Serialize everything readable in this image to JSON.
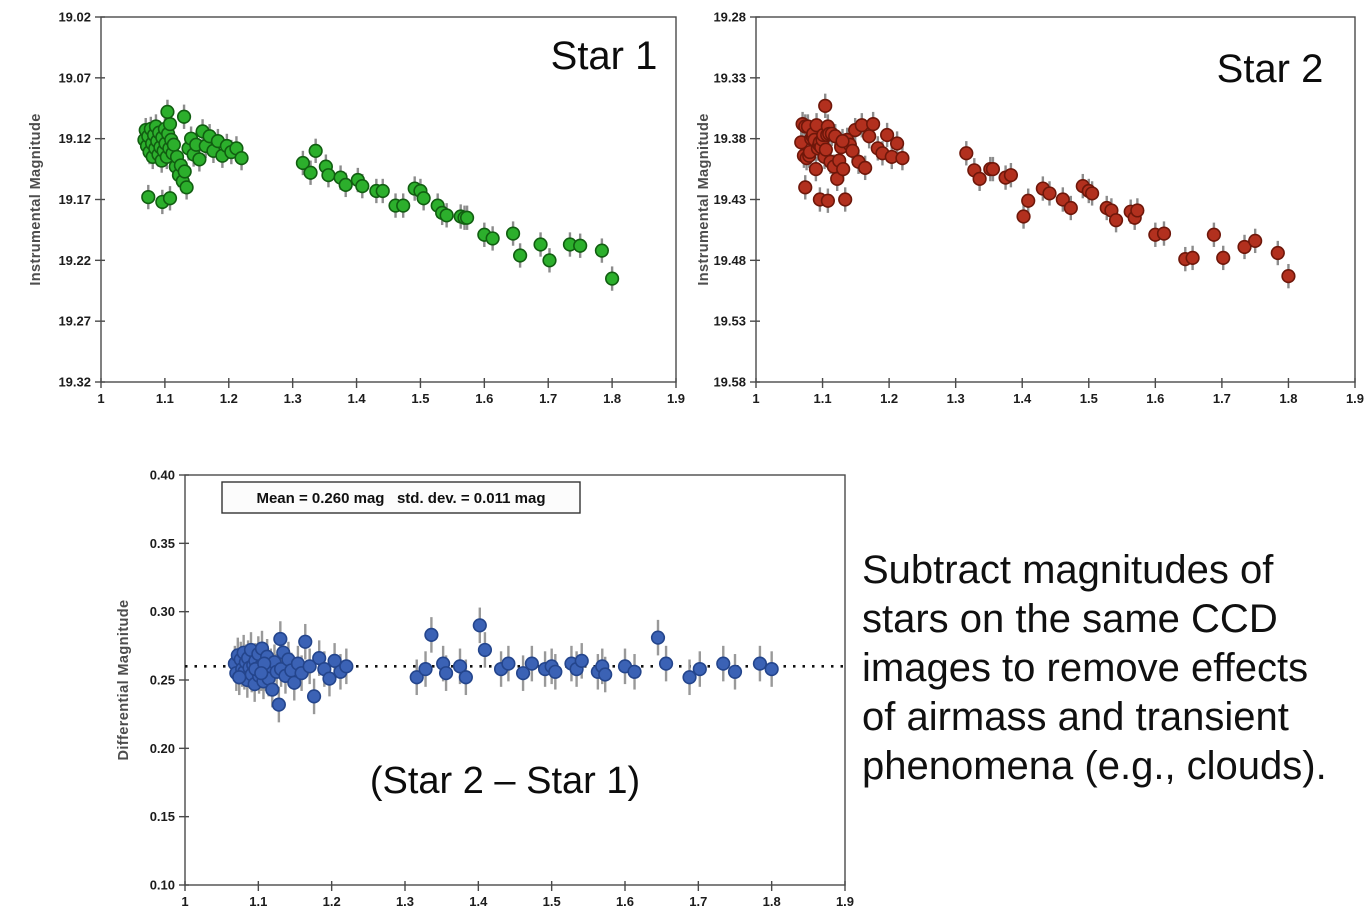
{
  "page": {
    "background": "#ffffff"
  },
  "side_text": {
    "lines": [
      "Subtract magnitudes of",
      "stars on the same CCD",
      "images to remove effects",
      "of airmass and transient",
      "phenomena (e.g., clouds)."
    ]
  },
  "chart_data": [
    {
      "type": "scatter",
      "title": "Star 1",
      "xlabel": "",
      "ylabel": "Instrumental Magnitude",
      "xlim": [
        1,
        1.9
      ],
      "x_ticks": [
        1,
        1.1,
        1.2,
        1.3,
        1.4,
        1.5,
        1.6,
        1.7,
        1.8,
        1.9
      ],
      "y_top": 19.02,
      "y_bottom": 19.32,
      "y_ticks": [
        19.02,
        19.07,
        19.12,
        19.17,
        19.22,
        19.27,
        19.32
      ],
      "grid": false,
      "marker_color": "#2CAF2C",
      "marker_edge_color": "#115E11",
      "errorbar_color": "#8C8C8C",
      "error_mag": 0.01,
      "points": [
        [
          1.068,
          19.121
        ],
        [
          1.07,
          19.113
        ],
        [
          1.072,
          19.126
        ],
        [
          1.074,
          19.118
        ],
        [
          1.076,
          19.131
        ],
        [
          1.078,
          19.112
        ],
        [
          1.08,
          19.124
        ],
        [
          1.081,
          19.135
        ],
        [
          1.083,
          19.117
        ],
        [
          1.085,
          19.128
        ],
        [
          1.086,
          19.11
        ],
        [
          1.088,
          19.122
        ],
        [
          1.09,
          19.133
        ],
        [
          1.091,
          19.115
        ],
        [
          1.093,
          19.127
        ],
        [
          1.095,
          19.138
        ],
        [
          1.096,
          19.119
        ],
        [
          1.098,
          19.13
        ],
        [
          1.1,
          19.112
        ],
        [
          1.101,
          19.124
        ],
        [
          1.103,
          19.135
        ],
        [
          1.105,
          19.116
        ],
        [
          1.107,
          19.128
        ],
        [
          1.108,
          19.108
        ],
        [
          1.11,
          19.121
        ],
        [
          1.112,
          19.132
        ],
        [
          1.114,
          19.125
        ],
        [
          1.117,
          19.143
        ],
        [
          1.119,
          19.135
        ],
        [
          1.122,
          19.15
        ],
        [
          1.125,
          19.142
        ],
        [
          1.128,
          19.155
        ],
        [
          1.131,
          19.147
        ],
        [
          1.134,
          19.16
        ],
        [
          1.137,
          19.128
        ],
        [
          1.141,
          19.12
        ],
        [
          1.145,
          19.133
        ],
        [
          1.149,
          19.125
        ],
        [
          1.154,
          19.137
        ],
        [
          1.159,
          19.114
        ],
        [
          1.164,
          19.126
        ],
        [
          1.17,
          19.118
        ],
        [
          1.176,
          19.13
        ],
        [
          1.183,
          19.122
        ],
        [
          1.19,
          19.134
        ],
        [
          1.197,
          19.126
        ],
        [
          1.204,
          19.131
        ],
        [
          1.212,
          19.128
        ],
        [
          1.22,
          19.136
        ],
        [
          1.074,
          19.168
        ],
        [
          1.096,
          19.172
        ],
        [
          1.108,
          19.169
        ],
        [
          1.104,
          19.098
        ],
        [
          1.13,
          19.102
        ],
        [
          1.316,
          19.14
        ],
        [
          1.328,
          19.148
        ],
        [
          1.336,
          19.13
        ],
        [
          1.352,
          19.143
        ],
        [
          1.356,
          19.15
        ],
        [
          1.375,
          19.152
        ],
        [
          1.383,
          19.158
        ],
        [
          1.402,
          19.154
        ],
        [
          1.409,
          19.159
        ],
        [
          1.431,
          19.163
        ],
        [
          1.441,
          19.163
        ],
        [
          1.461,
          19.175
        ],
        [
          1.473,
          19.175
        ],
        [
          1.491,
          19.161
        ],
        [
          1.5,
          19.163
        ],
        [
          1.505,
          19.169
        ],
        [
          1.527,
          19.175
        ],
        [
          1.534,
          19.181
        ],
        [
          1.541,
          19.183
        ],
        [
          1.563,
          19.184
        ],
        [
          1.569,
          19.185
        ],
        [
          1.573,
          19.185
        ],
        [
          1.6,
          19.199
        ],
        [
          1.613,
          19.202
        ],
        [
          1.645,
          19.198
        ],
        [
          1.656,
          19.216
        ],
        [
          1.688,
          19.207
        ],
        [
          1.702,
          19.22
        ],
        [
          1.734,
          19.207
        ],
        [
          1.75,
          19.208
        ],
        [
          1.784,
          19.212
        ],
        [
          1.8,
          19.235
        ]
      ]
    },
    {
      "type": "scatter",
      "title": "Star 2",
      "xlabel": "",
      "ylabel": "Instrumental Magnitude",
      "xlim": [
        1,
        1.9
      ],
      "x_ticks": [
        1,
        1.1,
        1.2,
        1.3,
        1.4,
        1.5,
        1.6,
        1.7,
        1.8,
        1.9
      ],
      "y_top": 19.28,
      "y_bottom": 19.58,
      "y_ticks": [
        19.28,
        19.33,
        19.38,
        19.43,
        19.48,
        19.53,
        19.58
      ],
      "grid": false,
      "marker_color": "#B2301E",
      "marker_edge_color": "#6E170A",
      "errorbar_color": "#8C8C8C",
      "error_mag": 0.01,
      "points": [
        [
          1.068,
          19.383
        ],
        [
          1.07,
          19.368
        ],
        [
          1.072,
          19.394
        ],
        [
          1.074,
          19.37
        ],
        [
          1.076,
          19.396
        ],
        [
          1.078,
          19.37
        ],
        [
          1.08,
          19.394
        ],
        [
          1.081,
          19.391
        ],
        [
          1.083,
          19.38
        ],
        [
          1.085,
          19.378
        ],
        [
          1.086,
          19.376
        ],
        [
          1.088,
          19.381
        ],
        [
          1.09,
          19.405
        ],
        [
          1.091,
          19.369
        ],
        [
          1.093,
          19.388
        ],
        [
          1.095,
          19.385
        ],
        [
          1.096,
          19.383
        ],
        [
          1.098,
          19.387
        ],
        [
          1.1,
          19.381
        ],
        [
          1.101,
          19.377
        ],
        [
          1.103,
          19.395
        ],
        [
          1.105,
          19.389
        ],
        [
          1.107,
          19.377
        ],
        [
          1.108,
          19.37
        ],
        [
          1.11,
          19.376
        ],
        [
          1.112,
          19.399
        ],
        [
          1.114,
          19.376
        ],
        [
          1.117,
          19.403
        ],
        [
          1.119,
          19.378
        ],
        [
          1.122,
          19.413
        ],
        [
          1.125,
          19.398
        ],
        [
          1.128,
          19.387
        ],
        [
          1.131,
          19.405
        ],
        [
          1.134,
          19.43
        ],
        [
          1.137,
          19.381
        ],
        [
          1.141,
          19.385
        ],
        [
          1.145,
          19.39
        ],
        [
          1.149,
          19.373
        ],
        [
          1.154,
          19.399
        ],
        [
          1.159,
          19.369
        ],
        [
          1.164,
          19.404
        ],
        [
          1.17,
          19.378
        ],
        [
          1.176,
          19.368
        ],
        [
          1.183,
          19.388
        ],
        [
          1.19,
          19.392
        ],
        [
          1.197,
          19.377
        ],
        [
          1.204,
          19.395
        ],
        [
          1.212,
          19.384
        ],
        [
          1.22,
          19.396
        ],
        [
          1.074,
          19.42
        ],
        [
          1.096,
          19.43
        ],
        [
          1.108,
          19.431
        ],
        [
          1.104,
          19.353
        ],
        [
          1.13,
          19.382
        ],
        [
          1.316,
          19.392
        ],
        [
          1.328,
          19.406
        ],
        [
          1.336,
          19.413
        ],
        [
          1.352,
          19.405
        ],
        [
          1.356,
          19.405
        ],
        [
          1.375,
          19.412
        ],
        [
          1.383,
          19.41
        ],
        [
          1.402,
          19.444
        ],
        [
          1.409,
          19.431
        ],
        [
          1.431,
          19.421
        ],
        [
          1.441,
          19.425
        ],
        [
          1.461,
          19.43
        ],
        [
          1.473,
          19.437
        ],
        [
          1.491,
          19.419
        ],
        [
          1.5,
          19.423
        ],
        [
          1.505,
          19.425
        ],
        [
          1.527,
          19.437
        ],
        [
          1.534,
          19.439
        ],
        [
          1.541,
          19.447
        ],
        [
          1.563,
          19.44
        ],
        [
          1.569,
          19.445
        ],
        [
          1.573,
          19.439
        ],
        [
          1.6,
          19.459
        ],
        [
          1.613,
          19.458
        ],
        [
          1.645,
          19.479
        ],
        [
          1.656,
          19.478
        ],
        [
          1.688,
          19.459
        ],
        [
          1.702,
          19.478
        ],
        [
          1.734,
          19.469
        ],
        [
          1.75,
          19.464
        ],
        [
          1.784,
          19.474
        ],
        [
          1.8,
          19.493
        ]
      ]
    },
    {
      "type": "scatter",
      "title": "(Star 2 – Star 1)",
      "xlabel": "",
      "ylabel": "Differential Magnitude",
      "xlim": [
        1,
        1.9
      ],
      "x_ticks": [
        1,
        1.1,
        1.2,
        1.3,
        1.4,
        1.5,
        1.6,
        1.7,
        1.8,
        1.9
      ],
      "y_top": 0.4,
      "y_bottom": 0.1,
      "y_ticks": [
        0.4,
        0.35,
        0.3,
        0.25,
        0.2,
        0.15,
        0.1
      ],
      "grid": false,
      "annotation": "Mean = 0.260 mag   std. dev. = 0.011 mag",
      "mean_mag": 0.26,
      "std_dev_mag": 0.011,
      "mean_line": 0.26,
      "mean_line_color": "#111111",
      "marker_color": "#3B62B5",
      "marker_edge_color": "#24458C",
      "errorbar_color": "#999999",
      "error_mag": 0.013,
      "points": [
        [
          1.068,
          0.262
        ],
        [
          1.07,
          0.255
        ],
        [
          1.072,
          0.268
        ],
        [
          1.074,
          0.252
        ],
        [
          1.076,
          0.265
        ],
        [
          1.078,
          0.258
        ],
        [
          1.08,
          0.27
        ],
        [
          1.081,
          0.256
        ],
        [
          1.083,
          0.263
        ],
        [
          1.085,
          0.25
        ],
        [
          1.086,
          0.266
        ],
        [
          1.088,
          0.259
        ],
        [
          1.09,
          0.272
        ],
        [
          1.091,
          0.254
        ],
        [
          1.093,
          0.261
        ],
        [
          1.095,
          0.247
        ],
        [
          1.096,
          0.264
        ],
        [
          1.098,
          0.257
        ],
        [
          1.1,
          0.269
        ],
        [
          1.101,
          0.253
        ],
        [
          1.103,
          0.26
        ],
        [
          1.105,
          0.273
        ],
        [
          1.107,
          0.249
        ],
        [
          1.108,
          0.262
        ],
        [
          1.11,
          0.255
        ],
        [
          1.112,
          0.267
        ],
        [
          1.114,
          0.251
        ],
        [
          1.117,
          0.26
        ],
        [
          1.119,
          0.243
        ],
        [
          1.122,
          0.263
        ],
        [
          1.125,
          0.256
        ],
        [
          1.128,
          0.232
        ],
        [
          1.131,
          0.258
        ],
        [
          1.134,
          0.27
        ],
        [
          1.137,
          0.253
        ],
        [
          1.141,
          0.265
        ],
        [
          1.145,
          0.257
        ],
        [
          1.149,
          0.248
        ],
        [
          1.154,
          0.262
        ],
        [
          1.159,
          0.255
        ],
        [
          1.164,
          0.278
        ],
        [
          1.17,
          0.26
        ],
        [
          1.176,
          0.238
        ],
        [
          1.183,
          0.266
        ],
        [
          1.19,
          0.258
        ],
        [
          1.197,
          0.251
        ],
        [
          1.204,
          0.264
        ],
        [
          1.212,
          0.256
        ],
        [
          1.22,
          0.26
        ],
        [
          1.074,
          0.252
        ],
        [
          1.096,
          0.258
        ],
        [
          1.108,
          0.262
        ],
        [
          1.104,
          0.255
        ],
        [
          1.13,
          0.28
        ],
        [
          1.316,
          0.252
        ],
        [
          1.328,
          0.258
        ],
        [
          1.336,
          0.283
        ],
        [
          1.352,
          0.262
        ],
        [
          1.356,
          0.255
        ],
        [
          1.375,
          0.26
        ],
        [
          1.383,
          0.252
        ],
        [
          1.402,
          0.29
        ],
        [
          1.409,
          0.272
        ],
        [
          1.431,
          0.258
        ],
        [
          1.441,
          0.262
        ],
        [
          1.461,
          0.255
        ],
        [
          1.473,
          0.262
        ],
        [
          1.491,
          0.258
        ],
        [
          1.5,
          0.26
        ],
        [
          1.505,
          0.256
        ],
        [
          1.527,
          0.262
        ],
        [
          1.534,
          0.258
        ],
        [
          1.541,
          0.264
        ],
        [
          1.563,
          0.256
        ],
        [
          1.569,
          0.26
        ],
        [
          1.573,
          0.254
        ],
        [
          1.6,
          0.26
        ],
        [
          1.613,
          0.256
        ],
        [
          1.645,
          0.281
        ],
        [
          1.656,
          0.262
        ],
        [
          1.688,
          0.252
        ],
        [
          1.702,
          0.258
        ],
        [
          1.734,
          0.262
        ],
        [
          1.75,
          0.256
        ],
        [
          1.784,
          0.262
        ],
        [
          1.8,
          0.258
        ]
      ]
    }
  ]
}
